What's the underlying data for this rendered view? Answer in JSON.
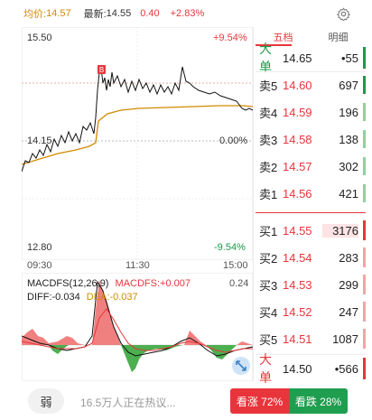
{
  "header": {
    "avg_label": "均价:",
    "avg_value": "14.57",
    "last_label": "最新:",
    "last_value": "14.55",
    "change": "0.40",
    "change_pct": "+2.83%"
  },
  "chart": {
    "y_top": "15.50",
    "y_mid": "14.15",
    "y_bottom": "12.80",
    "pct_top": "+9.54%",
    "pct_mid": "0.00%",
    "pct_bottom": "-9.54%",
    "times": [
      "09:30",
      "11:30",
      "15:00"
    ],
    "marker": "B"
  },
  "macd": {
    "name": "MACDFS(12,26,9)",
    "macd_label": "MACDFS:+0.007",
    "diff_label": "DIFF:-0.034",
    "dea_label": "DEA:-0.037",
    "right_value": "0.24"
  },
  "book": {
    "tabs": [
      "五档",
      "明细"
    ],
    "top_big": {
      "label": "大单",
      "price": "14.65",
      "vol": "•55"
    },
    "sell": [
      {
        "label": "卖5",
        "price": "14.60",
        "vol": "697"
      },
      {
        "label": "卖4",
        "price": "14.59",
        "vol": "196"
      },
      {
        "label": "卖3",
        "price": "14.58",
        "vol": "138"
      },
      {
        "label": "卖2",
        "price": "14.57",
        "vol": "302"
      },
      {
        "label": "卖1",
        "price": "14.56",
        "vol": "421"
      }
    ],
    "buy": [
      {
        "label": "买1",
        "price": "14.55",
        "vol": "3176"
      },
      {
        "label": "买2",
        "price": "14.54",
        "vol": "283"
      },
      {
        "label": "买3",
        "price": "14.53",
        "vol": "299"
      },
      {
        "label": "买4",
        "price": "14.52",
        "vol": "247"
      },
      {
        "label": "买5",
        "price": "14.51",
        "vol": "1087"
      }
    ],
    "bottom_big": {
      "label": "大单",
      "price": "14.50",
      "vol": "•566"
    }
  },
  "bottom": {
    "weak_label": "弱",
    "people_text": "16.5万人正在热议...",
    "bull_label": "看涨 72%",
    "bear_label": "看跌 28%"
  },
  "colors": {
    "up": "#e8353b",
    "down": "#1a9a4a",
    "avg": "#d18a00"
  }
}
